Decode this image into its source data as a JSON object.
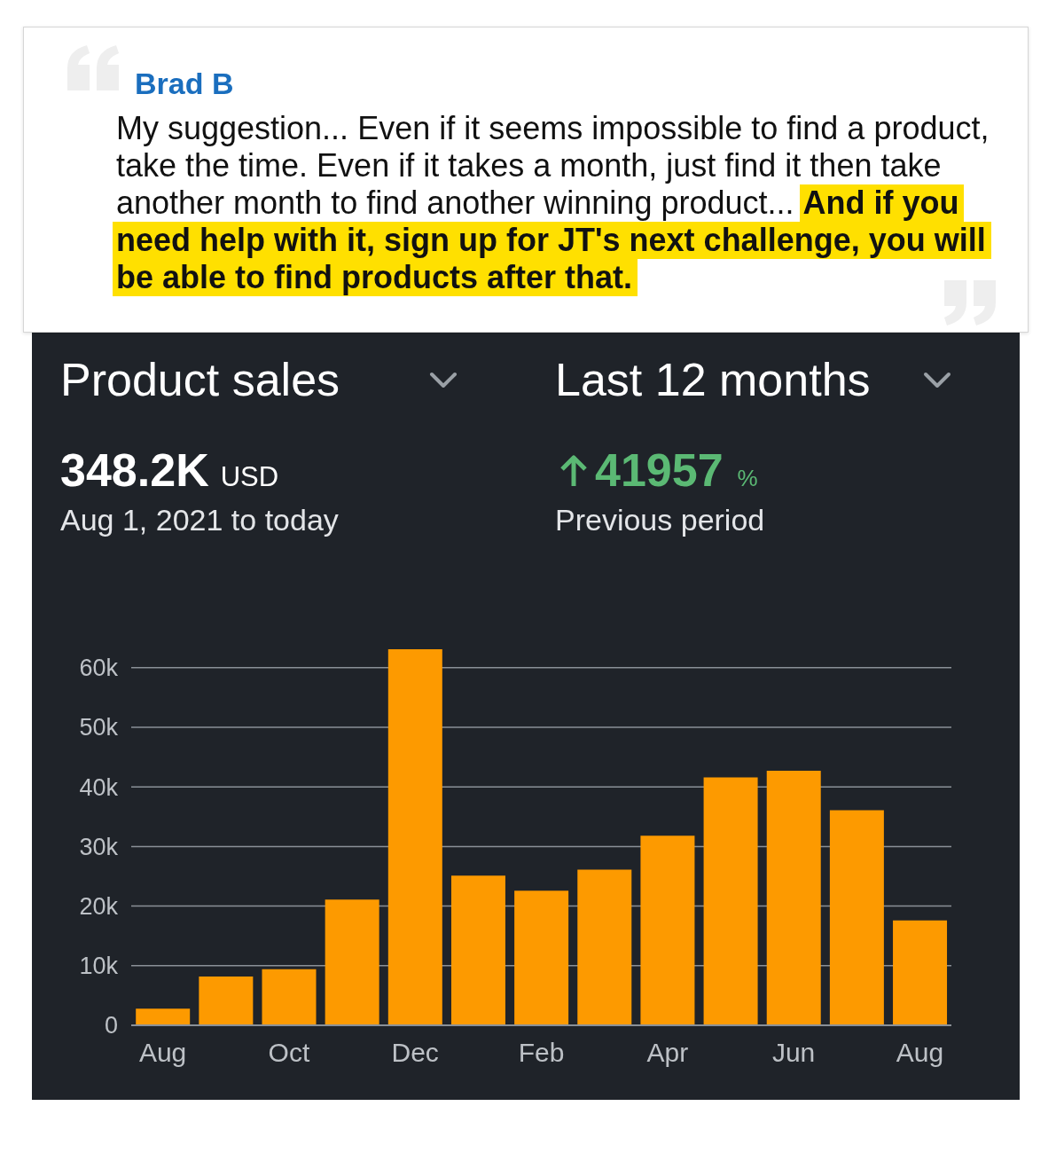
{
  "chart_data": {
    "type": "bar",
    "title": "Product sales",
    "subtitle": "Last 12 months",
    "categories": [
      "Aug",
      null,
      "Oct",
      null,
      "Dec",
      null,
      "Feb",
      null,
      "Apr",
      null,
      "Jun",
      null,
      "Aug"
    ],
    "values": [
      2800,
      8200,
      9400,
      21100,
      63100,
      25100,
      22600,
      26100,
      31800,
      41600,
      42700,
      36100,
      17600
    ],
    "color": "#fd9a00",
    "ylim": [
      0,
      63100
    ],
    "yticks": [
      0,
      {
        "value": 10000,
        "label": "10k"
      },
      {
        "value": 20000,
        "label": "20k"
      },
      {
        "value": 30000,
        "label": "30k"
      },
      {
        "value": 40000,
        "label": "40k"
      },
      {
        "value": 50000,
        "label": "50k"
      },
      {
        "value": 60000,
        "label": "60k"
      }
    ],
    "grid": "y",
    "annotations": [
      "Brad B",
      "My suggestion... Even if it seems impossible to find a product,",
      "take the time. Even if it takes a month, just find it then take",
      "another month to find another winning product...",
      "And if you",
      "need help with it, sign up for JT's next challenge, you will",
      "be able to find products after that.",
      "348.2K",
      "USD",
      "Aug 1, 2021 to today",
      "41957",
      "%",
      "Previous period"
    ]
  }
}
